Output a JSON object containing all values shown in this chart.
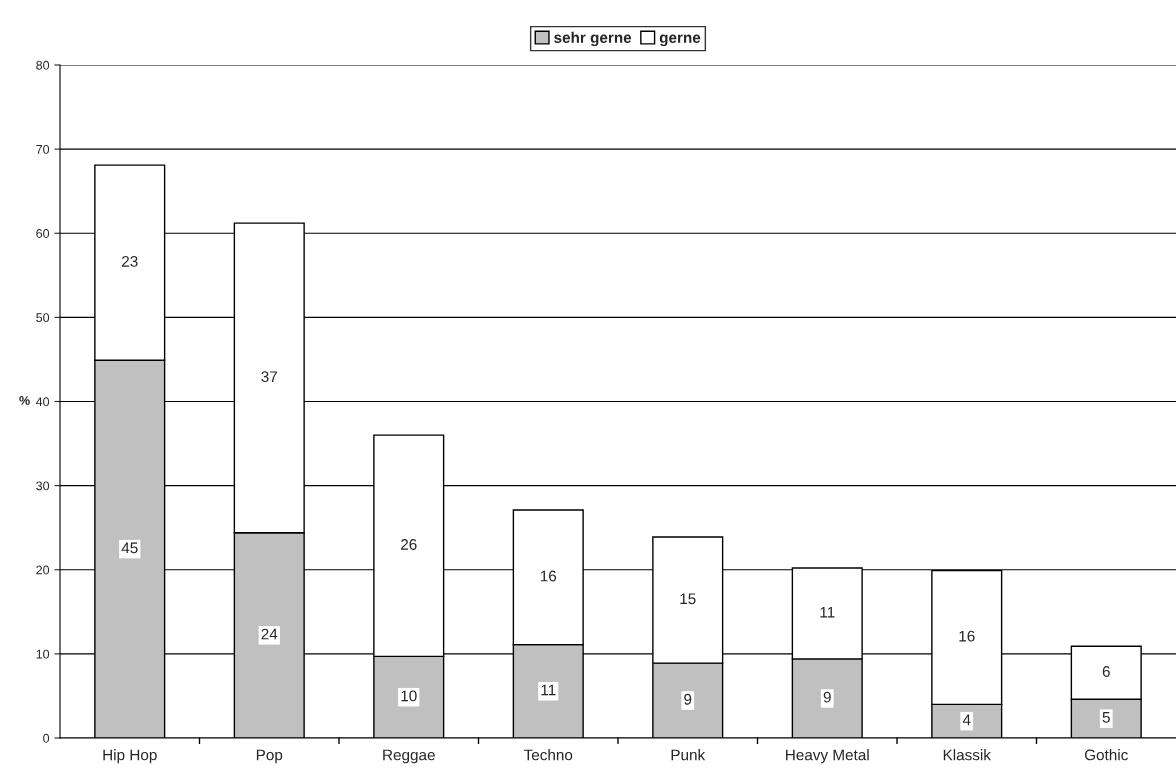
{
  "chart_data": {
    "type": "bar",
    "stacked": true,
    "ylabel": "%",
    "categories": [
      "Hip Hop",
      "Pop",
      "Reggae",
      "Techno",
      "Punk",
      "Heavy Metal",
      "Klassik",
      "Gothic"
    ],
    "series": [
      {
        "name": "sehr gerne",
        "color": "#c0c0c0",
        "values": [
          44.9,
          24.4,
          9.7,
          11.1,
          8.9,
          9.4,
          4.0,
          4.6
        ],
        "value_labels": [
          "45",
          "24",
          "10",
          "11",
          "9",
          "9",
          "4",
          "5"
        ]
      },
      {
        "name": "gerne",
        "color": "#ffffff",
        "values": [
          23.2,
          36.8,
          26.3,
          16.0,
          15.0,
          10.8,
          15.9,
          6.3
        ],
        "value_labels": [
          "23",
          "37",
          "26",
          "16",
          "15",
          "11",
          "16",
          "6"
        ]
      }
    ],
    "ylim": [
      0,
      80
    ],
    "yticks": [
      0,
      10,
      20,
      30,
      40,
      50,
      60,
      70,
      80
    ],
    "grid": "y",
    "legend": "top"
  }
}
